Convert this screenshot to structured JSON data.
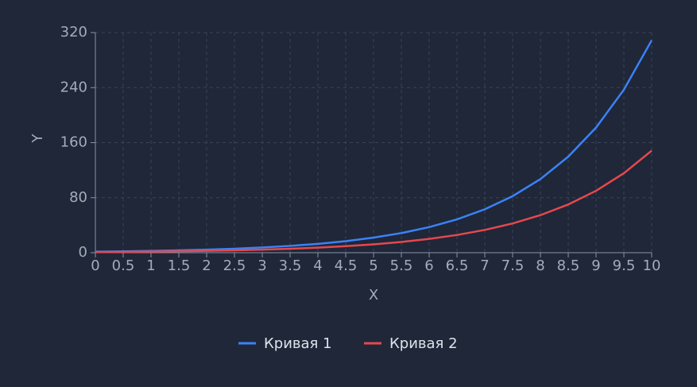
{
  "chart_data": {
    "type": "line",
    "x_label": "X",
    "y_label": "Y",
    "x": [
      0,
      0.5,
      1,
      1.5,
      2,
      2.5,
      3,
      3.5,
      4,
      4.5,
      5,
      5.5,
      6,
      6.5,
      7,
      7.5,
      8,
      8.5,
      9,
      9.5,
      10
    ],
    "series": [
      {
        "name": "Кривая 1",
        "color": "#3b82f6",
        "values": [
          1.55,
          2.02,
          2.63,
          3.43,
          4.47,
          5.83,
          7.59,
          9.89,
          12.9,
          16.8,
          21.9,
          28.5,
          37.2,
          48.4,
          63.1,
          82.2,
          107.1,
          139.6,
          181.9,
          237.0,
          308.8
        ]
      },
      {
        "name": "Кривая 2",
        "color": "#e5484d",
        "values": [
          1,
          1.28,
          1.65,
          2.12,
          2.72,
          3.49,
          4.48,
          5.75,
          7.39,
          9.49,
          12.18,
          15.64,
          20.09,
          25.79,
          33.12,
          42.52,
          54.6,
          70.1,
          90.0,
          115.6,
          148.4
        ]
      }
    ],
    "xlim": [
      0,
      10
    ],
    "xticks": [
      0,
      0.5,
      1,
      1.5,
      2,
      2.5,
      3,
      3.5,
      4,
      4.5,
      5,
      5.5,
      6,
      6.5,
      7,
      7.5,
      8,
      8.5,
      9,
      9.5,
      10
    ],
    "ylim": [
      0,
      320
    ],
    "yticks": [
      0,
      80,
      160,
      240,
      320
    ],
    "grid": true
  }
}
